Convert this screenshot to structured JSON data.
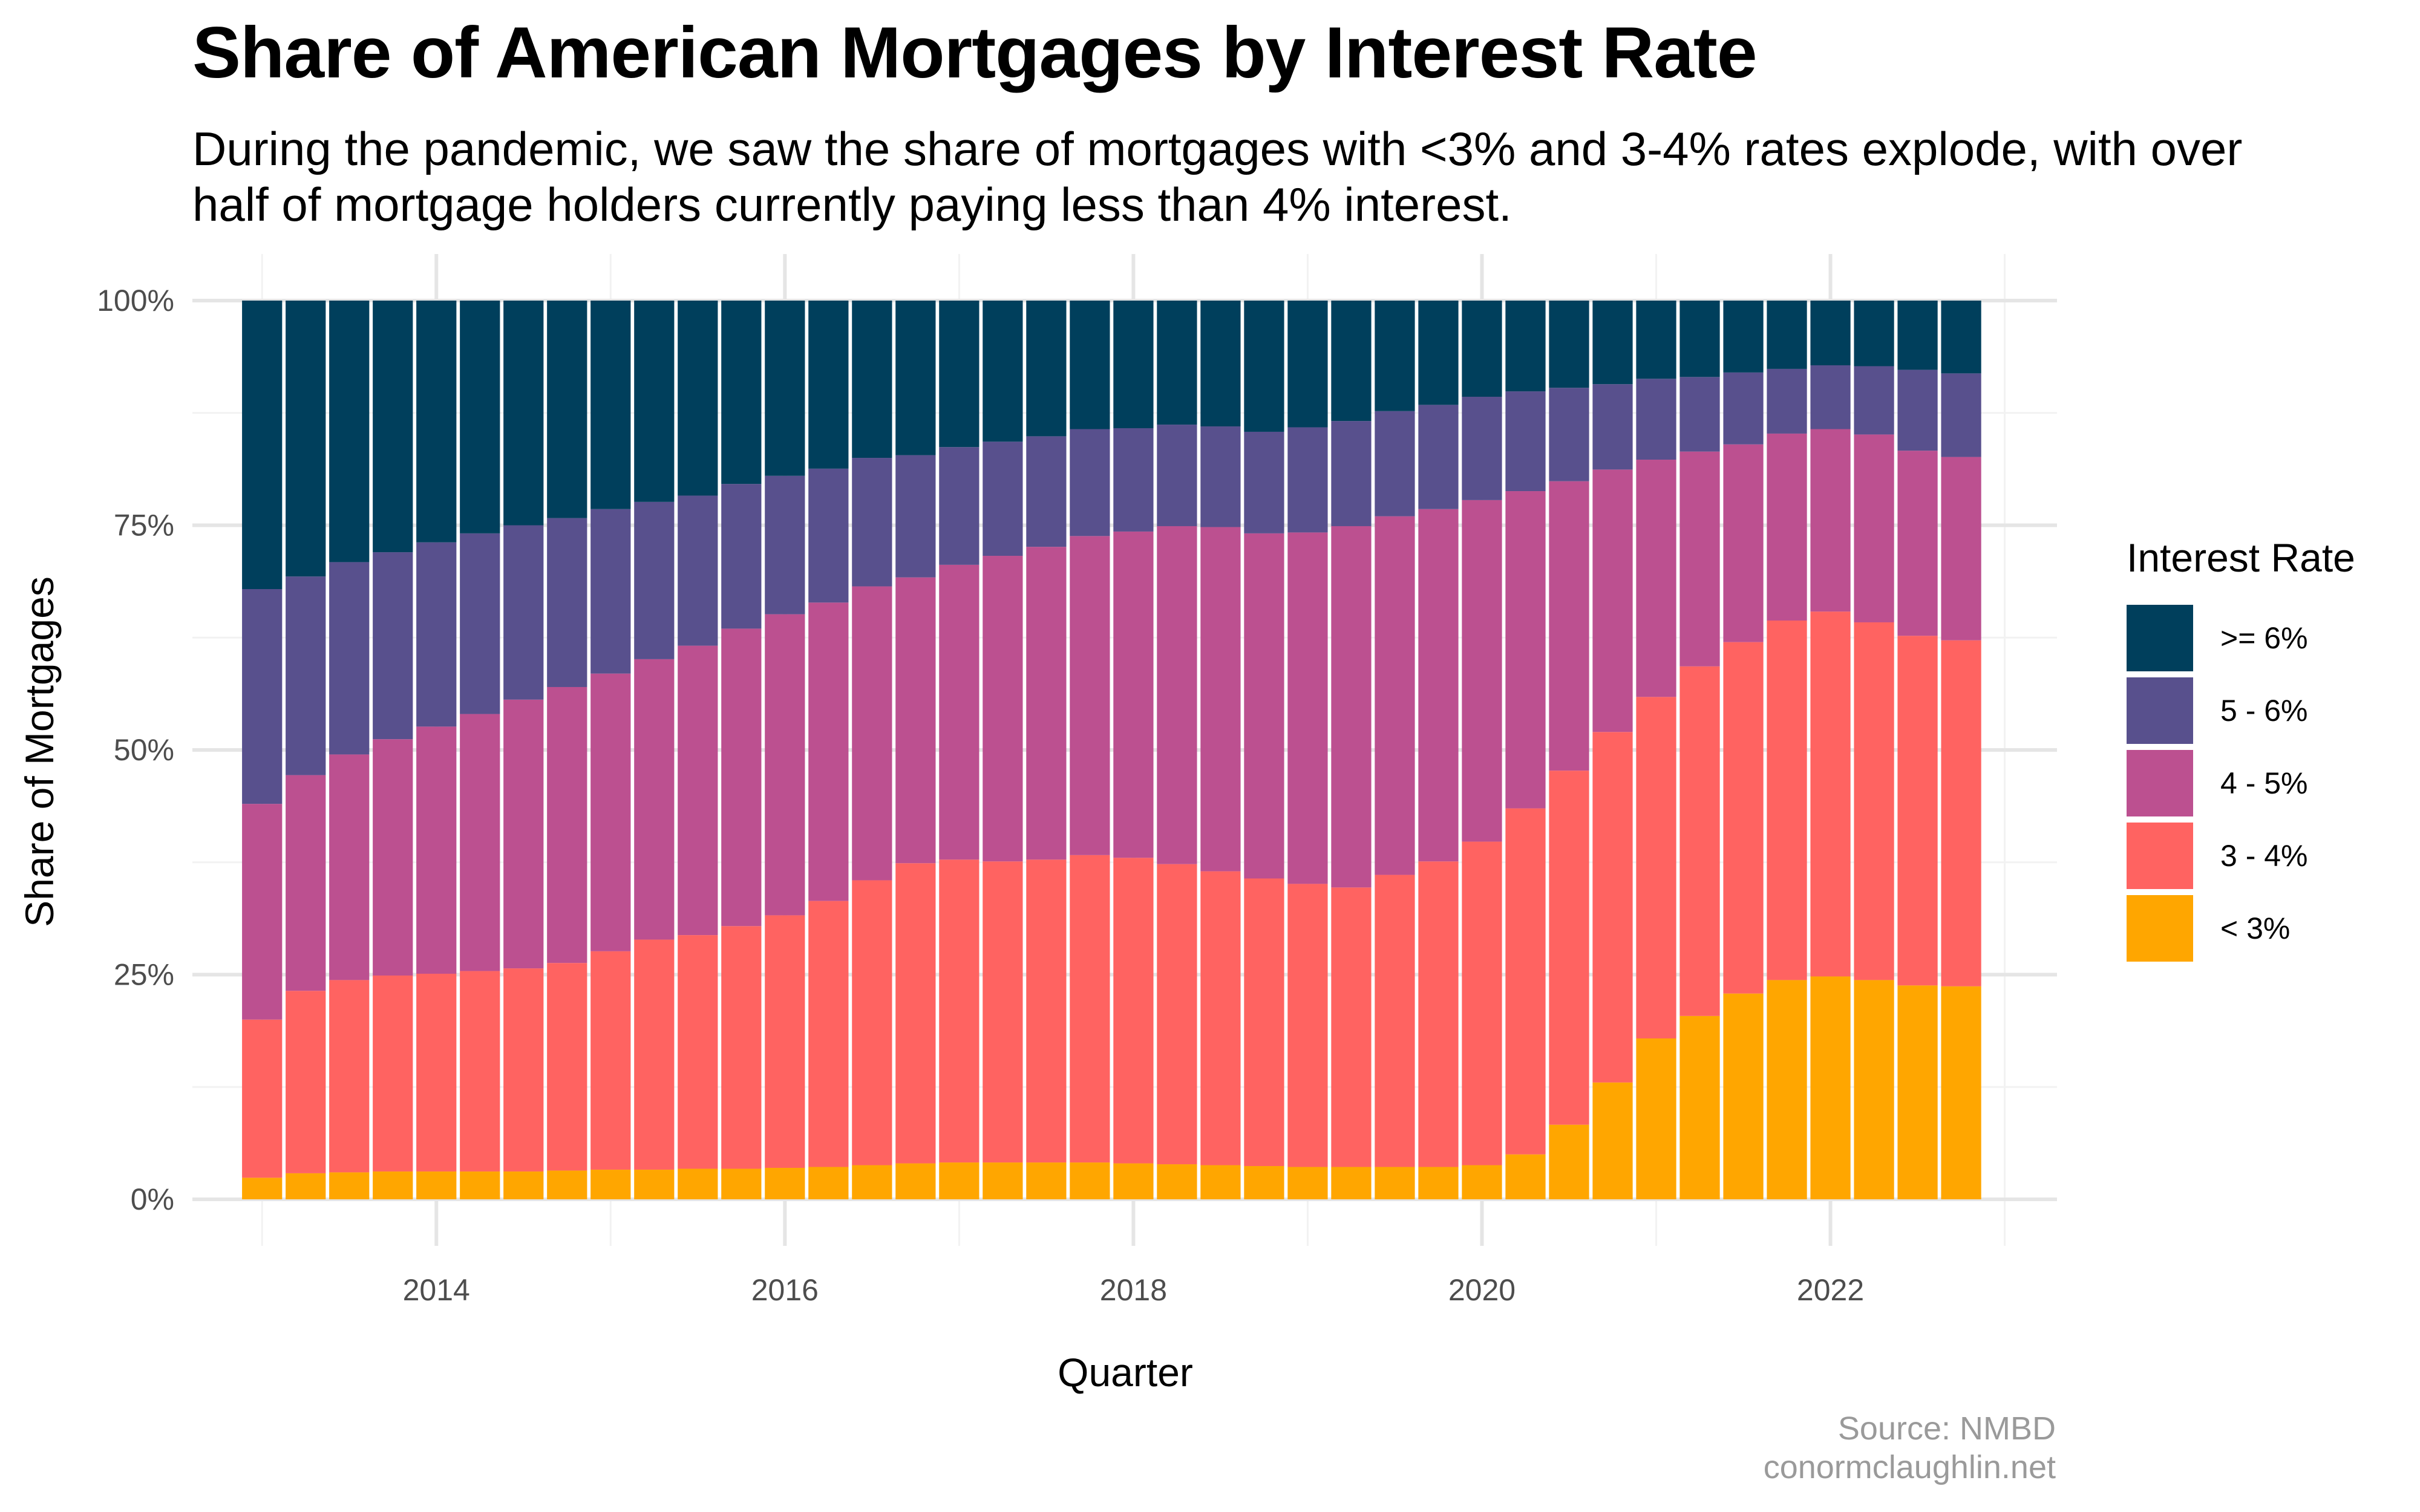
{
  "title": "Share of American Mortgages by Interest Rate",
  "subtitle": "During the pandemic, we saw the share of mortgages with <3% and 3-4% rates explode, with over half of mortgage holders currently paying less than 4% interest.",
  "caption": {
    "source": "Source: NMBD",
    "site": "conormclaughlin.net"
  },
  "chart_data": {
    "type": "bar",
    "stacked": true,
    "xlabel": "Quarter",
    "ylabel": "Share of Mortgages",
    "y_ticks": [
      "0%",
      "25%",
      "50%",
      "75%",
      "100%"
    ],
    "y_tick_values": [
      0,
      25,
      50,
      75,
      100
    ],
    "ylim": [
      0,
      100
    ],
    "x_ticks": [
      "2014",
      "2016",
      "2018",
      "2020",
      "2022"
    ],
    "x_tick_values": [
      2014,
      2016,
      2018,
      2020,
      2022
    ],
    "xlim": [
      2012.6,
      2023.3
    ],
    "grid": true,
    "legend": {
      "title": "Interest Rate",
      "position": "right"
    },
    "x": [
      2013.0,
      2013.25,
      2013.5,
      2013.75,
      2014.0,
      2014.25,
      2014.5,
      2014.75,
      2015.0,
      2015.25,
      2015.5,
      2015.75,
      2016.0,
      2016.25,
      2016.5,
      2016.75,
      2017.0,
      2017.25,
      2017.5,
      2017.75,
      2018.0,
      2018.25,
      2018.5,
      2018.75,
      2019.0,
      2019.25,
      2019.5,
      2019.75,
      2020.0,
      2020.25,
      2020.5,
      2020.75,
      2021.0,
      2021.25,
      2021.5,
      2021.75,
      2022.0,
      2022.25,
      2022.5,
      2022.75
    ],
    "series": [
      {
        "name": "< 3%",
        "color": "#ffa600",
        "values": [
          2.4,
          2.9,
          3.0,
          3.1,
          3.1,
          3.1,
          3.1,
          3.2,
          3.3,
          3.3,
          3.4,
          3.4,
          3.5,
          3.6,
          3.8,
          4.0,
          4.1,
          4.1,
          4.1,
          4.1,
          4.0,
          3.9,
          3.8,
          3.7,
          3.6,
          3.6,
          3.6,
          3.6,
          3.8,
          5.0,
          8.3,
          13.0,
          17.9,
          20.4,
          22.9,
          24.4,
          24.8,
          24.4,
          23.8,
          23.7
        ]
      },
      {
        "name": "3 - 4%",
        "color": "#ff6361",
        "values": [
          17.6,
          20.3,
          21.4,
          21.8,
          22.0,
          22.3,
          22.6,
          23.1,
          24.3,
          25.6,
          26.0,
          27.0,
          28.1,
          29.6,
          31.7,
          33.4,
          33.7,
          33.5,
          33.7,
          34.2,
          34.0,
          33.4,
          32.7,
          32.0,
          31.5,
          31.1,
          32.5,
          34.0,
          36.0,
          38.5,
          39.4,
          39.0,
          38.0,
          38.9,
          39.1,
          40.0,
          40.6,
          39.8,
          38.9,
          38.5
        ]
      },
      {
        "name": "4 - 5%",
        "color": "#bc5090",
        "values": [
          24.0,
          24.0,
          25.1,
          26.3,
          27.5,
          28.6,
          29.9,
          30.7,
          30.9,
          31.2,
          32.2,
          33.1,
          33.5,
          33.2,
          32.7,
          31.8,
          32.8,
          34.0,
          34.8,
          35.5,
          36.3,
          37.6,
          38.3,
          38.4,
          39.1,
          40.2,
          39.9,
          39.2,
          38.0,
          35.3,
          32.2,
          29.2,
          26.4,
          23.9,
          22.0,
          20.8,
          20.3,
          20.9,
          20.6,
          20.4
        ]
      },
      {
        "name": "5 - 6%",
        "color": "#58508d",
        "values": [
          23.9,
          22.1,
          21.4,
          20.8,
          20.5,
          20.1,
          19.4,
          18.8,
          18.3,
          17.5,
          16.7,
          16.1,
          15.4,
          14.9,
          14.3,
          13.6,
          13.1,
          12.7,
          12.3,
          11.9,
          11.5,
          11.3,
          11.2,
          11.3,
          11.7,
          11.7,
          11.7,
          11.6,
          11.5,
          11.1,
          10.4,
          9.5,
          9.0,
          8.3,
          8.0,
          7.2,
          7.1,
          7.6,
          9.0,
          9.3
        ]
      },
      {
        "name": ">= 6%",
        "color": "#003f5c",
        "values": [
          32.1,
          30.7,
          29.1,
          28.0,
          26.9,
          25.9,
          25.0,
          24.2,
          23.2,
          22.4,
          21.7,
          20.4,
          19.5,
          18.7,
          17.5,
          17.2,
          16.3,
          15.7,
          15.1,
          14.3,
          14.2,
          13.8,
          14.0,
          14.6,
          14.1,
          13.4,
          12.3,
          11.6,
          10.7,
          10.1,
          9.7,
          9.3,
          8.7,
          8.5,
          8.0,
          7.6,
          7.2,
          7.3,
          7.7,
          8.1
        ]
      }
    ]
  }
}
